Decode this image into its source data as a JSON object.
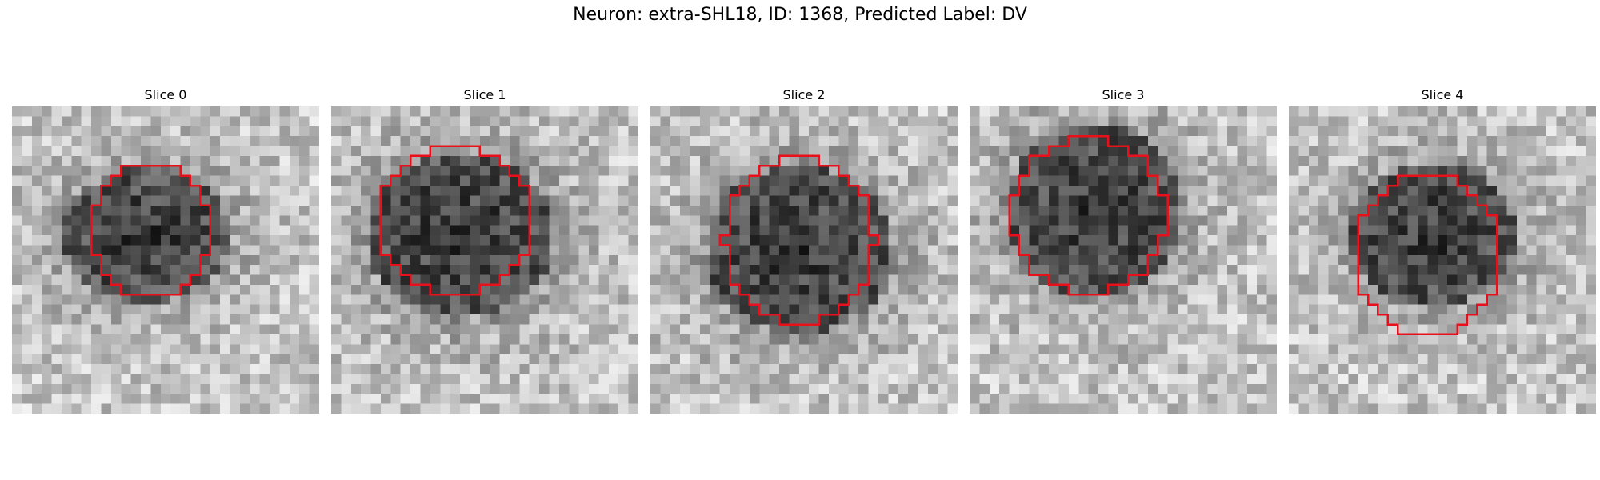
{
  "figure": {
    "title": "Neuron: extra-SHL18, ID: 1368, Predicted Label: DV",
    "contour_color": "#e8101a"
  },
  "panels": [
    {
      "title": "Slice 0",
      "seed": 11,
      "mask": {
        "cx": 14.0,
        "cy": 12.5,
        "rx": 6.0,
        "ry": 7.0
      },
      "blob": {
        "cx": 13.5,
        "cy": 13.0,
        "rx": 8.5,
        "ry": 6.8
      }
    },
    {
      "title": "Slice 1",
      "seed": 23,
      "mask": {
        "cx": 12.5,
        "cy": 11.5,
        "rx": 7.8,
        "ry": 7.5
      },
      "blob": {
        "cx": 13.0,
        "cy": 13.0,
        "rx": 9.5,
        "ry": 8.5
      }
    },
    {
      "title": "Slice 2",
      "seed": 37,
      "mask": {
        "cx": 15.0,
        "cy": 13.5,
        "rx": 7.5,
        "ry": 8.3
      },
      "blob": {
        "cx": 15.0,
        "cy": 14.5,
        "rx": 9.5,
        "ry": 8.5
      }
    },
    {
      "title": "Slice 3",
      "seed": 41,
      "mask": {
        "cx": 12.0,
        "cy": 11.0,
        "rx": 7.8,
        "ry": 7.8
      },
      "blob": {
        "cx": 12.5,
        "cy": 10.5,
        "rx": 9.0,
        "ry": 8.5
      }
    },
    {
      "title": "Slice 4",
      "seed": 59,
      "mask": {
        "cx": 14.0,
        "cy": 15.0,
        "rx": 7.5,
        "ry": 8.0
      },
      "blob": {
        "cx": 14.5,
        "cy": 13.0,
        "rx": 8.5,
        "ry": 7.0
      }
    }
  ]
}
